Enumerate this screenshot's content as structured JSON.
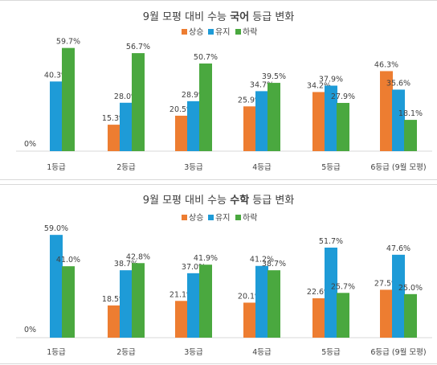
{
  "chart_data": [
    {
      "type": "bar",
      "title": "9월 모평 대비 수능 국어 등급 변화",
      "title_parts": [
        "9월 모평 대비 수능 ",
        "국어",
        " 등급 변화"
      ],
      "categories": [
        "1등급",
        "2등급",
        "3등급",
        "4등급",
        "5등급",
        "6등급 (9월 모평)"
      ],
      "series": [
        {
          "name": "상승",
          "color": "#ed7d31",
          "values": [
            null,
            15.3,
            20.5,
            25.9,
            34.2,
            46.3
          ]
        },
        {
          "name": "유지",
          "color": "#1e9bd7",
          "values": [
            40.3,
            28.0,
            28.9,
            34.7,
            37.9,
            35.6
          ]
        },
        {
          "name": "하락",
          "color": "#4aa83f",
          "values": [
            59.7,
            56.7,
            50.7,
            39.5,
            27.9,
            18.1
          ]
        }
      ],
      "labels": [
        [
          "",
          "15.3%",
          "20.5%",
          "25.9%",
          "34.2%",
          "46.3%"
        ],
        [
          "40.3%",
          "28.0%",
          "28.9%",
          "34.7%",
          "37.9%",
          "35.6%"
        ],
        [
          "59.7%",
          "56.7%",
          "50.7%",
          "39.5%",
          "27.9%",
          "18.1%"
        ]
      ],
      "zero_label": "0%",
      "ylim": [
        0,
        60
      ],
      "legend": "top"
    },
    {
      "type": "bar",
      "title": "9월 모평 대비 수능 수학 등급 변화",
      "title_parts": [
        "9월 모평 대비 수능 ",
        "수학",
        " 등급 변화"
      ],
      "categories": [
        "1등급",
        "2등급",
        "3등급",
        "4등급",
        "5등급",
        "6등급 (9월 모평)"
      ],
      "series": [
        {
          "name": "상승",
          "color": "#ed7d31",
          "values": [
            null,
            18.5,
            21.1,
            20.1,
            22.6,
            27.5
          ]
        },
        {
          "name": "유지",
          "color": "#1e9bd7",
          "values": [
            59.0,
            38.7,
            37.0,
            41.2,
            51.7,
            47.6
          ]
        },
        {
          "name": "하락",
          "color": "#4aa83f",
          "values": [
            41.0,
            42.8,
            41.9,
            38.7,
            25.7,
            25.0
          ]
        }
      ],
      "labels": [
        [
          "",
          "18.5%",
          "21.1%",
          "20.1%",
          "22.6%",
          "27.5%"
        ],
        [
          "59.0%",
          "38.7%",
          "37.0%",
          "41.2%",
          "51.7%",
          "47.6%"
        ],
        [
          "41.0%",
          "42.8%",
          "41.9%",
          "38.7%",
          "25.7%",
          "25.0%"
        ]
      ],
      "zero_label": "0%",
      "ylim": [
        0,
        60
      ],
      "legend": "top"
    }
  ]
}
